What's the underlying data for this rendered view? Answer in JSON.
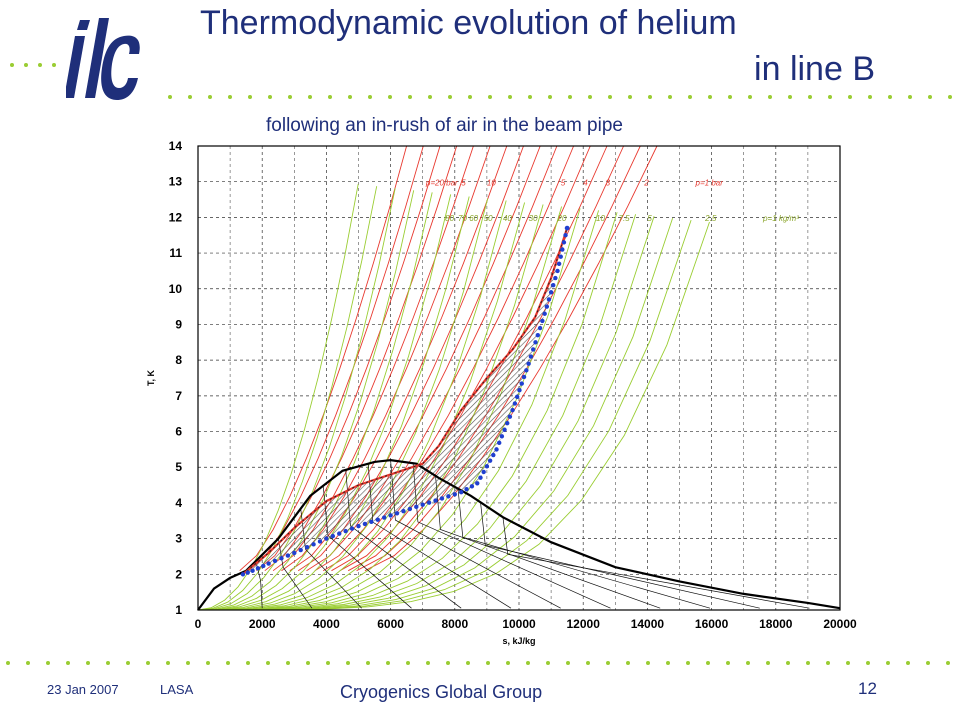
{
  "slide": {
    "title_line1": "Thermodynamic evolution of helium",
    "title_line2": "in line B",
    "subtitle": "following an in-rush of air in the beam pipe",
    "footer_date": "23 Jan 2007",
    "footer_place": "LASA",
    "footer_group": "Cryogenics Global Group",
    "page_number": "12",
    "logo_text": "ilc",
    "colors": {
      "title": "#1f2f7a",
      "dots": "#9acd32",
      "logo": "#1f2f7a"
    }
  },
  "chart_data": {
    "type": "line",
    "title": "",
    "xlabel": "s, kJ/kg",
    "ylabel": "T, K",
    "xlim": [
      0,
      20000
    ],
    "ylim": [
      1,
      14
    ],
    "grid": true,
    "x_ticks": [
      "0",
      "2000",
      "4000",
      "6000",
      "8000",
      "10000",
      "12000",
      "14000",
      "16000",
      "18000",
      "20000"
    ],
    "y_ticks": [
      "1",
      "2",
      "3",
      "4",
      "5",
      "6",
      "7",
      "8",
      "9",
      "10",
      "11",
      "12",
      "13",
      "14"
    ],
    "isobar_labels": [
      "p=20 bar",
      "5",
      "10",
      "5",
      "4",
      "3",
      "2",
      "p=1 bar"
    ],
    "isochore_labels": [
      "80",
      "70",
      "60",
      "50",
      "40",
      "30",
      "20",
      "10",
      "7.5",
      "5",
      "2.5",
      "ρ=1 kg/m³"
    ],
    "isobar_color": "#e8392f",
    "isochore_color": "#9acd32",
    "evolution_path_color": "#1f3fd0",
    "hatch_color": "#555555",
    "series": [
      {
        "points": [
          [
            1400,
            2.0
          ],
          [
            1700,
            2.1
          ],
          [
            2200,
            2.3
          ],
          [
            3000,
            2.6
          ],
          [
            4000,
            3.0
          ],
          [
            5000,
            3.35
          ],
          [
            6000,
            3.65
          ],
          [
            7000,
            3.95
          ],
          [
            8200,
            4.3
          ],
          [
            8700,
            4.55
          ],
          [
            9300,
            5.5
          ],
          [
            9800,
            6.6
          ],
          [
            10300,
            7.9
          ],
          [
            10800,
            9.3
          ],
          [
            11200,
            10.5
          ],
          [
            11500,
            11.7
          ]
        ]
      },
      {
        "points": [
          [
            1400,
            2.0
          ],
          [
            2200,
            2.6
          ],
          [
            3000,
            3.3
          ],
          [
            4000,
            4.05
          ],
          [
            5000,
            4.5
          ],
          [
            6000,
            4.8
          ],
          [
            7000,
            5.1
          ],
          [
            7500,
            5.6
          ],
          [
            8200,
            6.6
          ],
          [
            9000,
            7.5
          ],
          [
            9800,
            8.3
          ],
          [
            10500,
            9.2
          ],
          [
            11000,
            10.3
          ],
          [
            11500,
            11.7
          ]
        ]
      },
      {
        "points": [
          [
            0,
            1.0
          ],
          [
            500,
            1.6
          ],
          [
            1000,
            1.9
          ],
          [
            1500,
            2.1
          ],
          [
            2500,
            3.0
          ],
          [
            3500,
            4.2
          ],
          [
            4500,
            4.9
          ],
          [
            5500,
            5.15
          ],
          [
            6000,
            5.2
          ],
          [
            6800,
            5.1
          ],
          [
            7500,
            4.7
          ],
          [
            8500,
            4.2
          ],
          [
            9500,
            3.6
          ],
          [
            11000,
            2.9
          ],
          [
            13000,
            2.2
          ],
          [
            15000,
            1.8
          ],
          [
            17000,
            1.45
          ],
          [
            19000,
            1.2
          ],
          [
            20000,
            1.05
          ]
        ]
      }
    ]
  }
}
